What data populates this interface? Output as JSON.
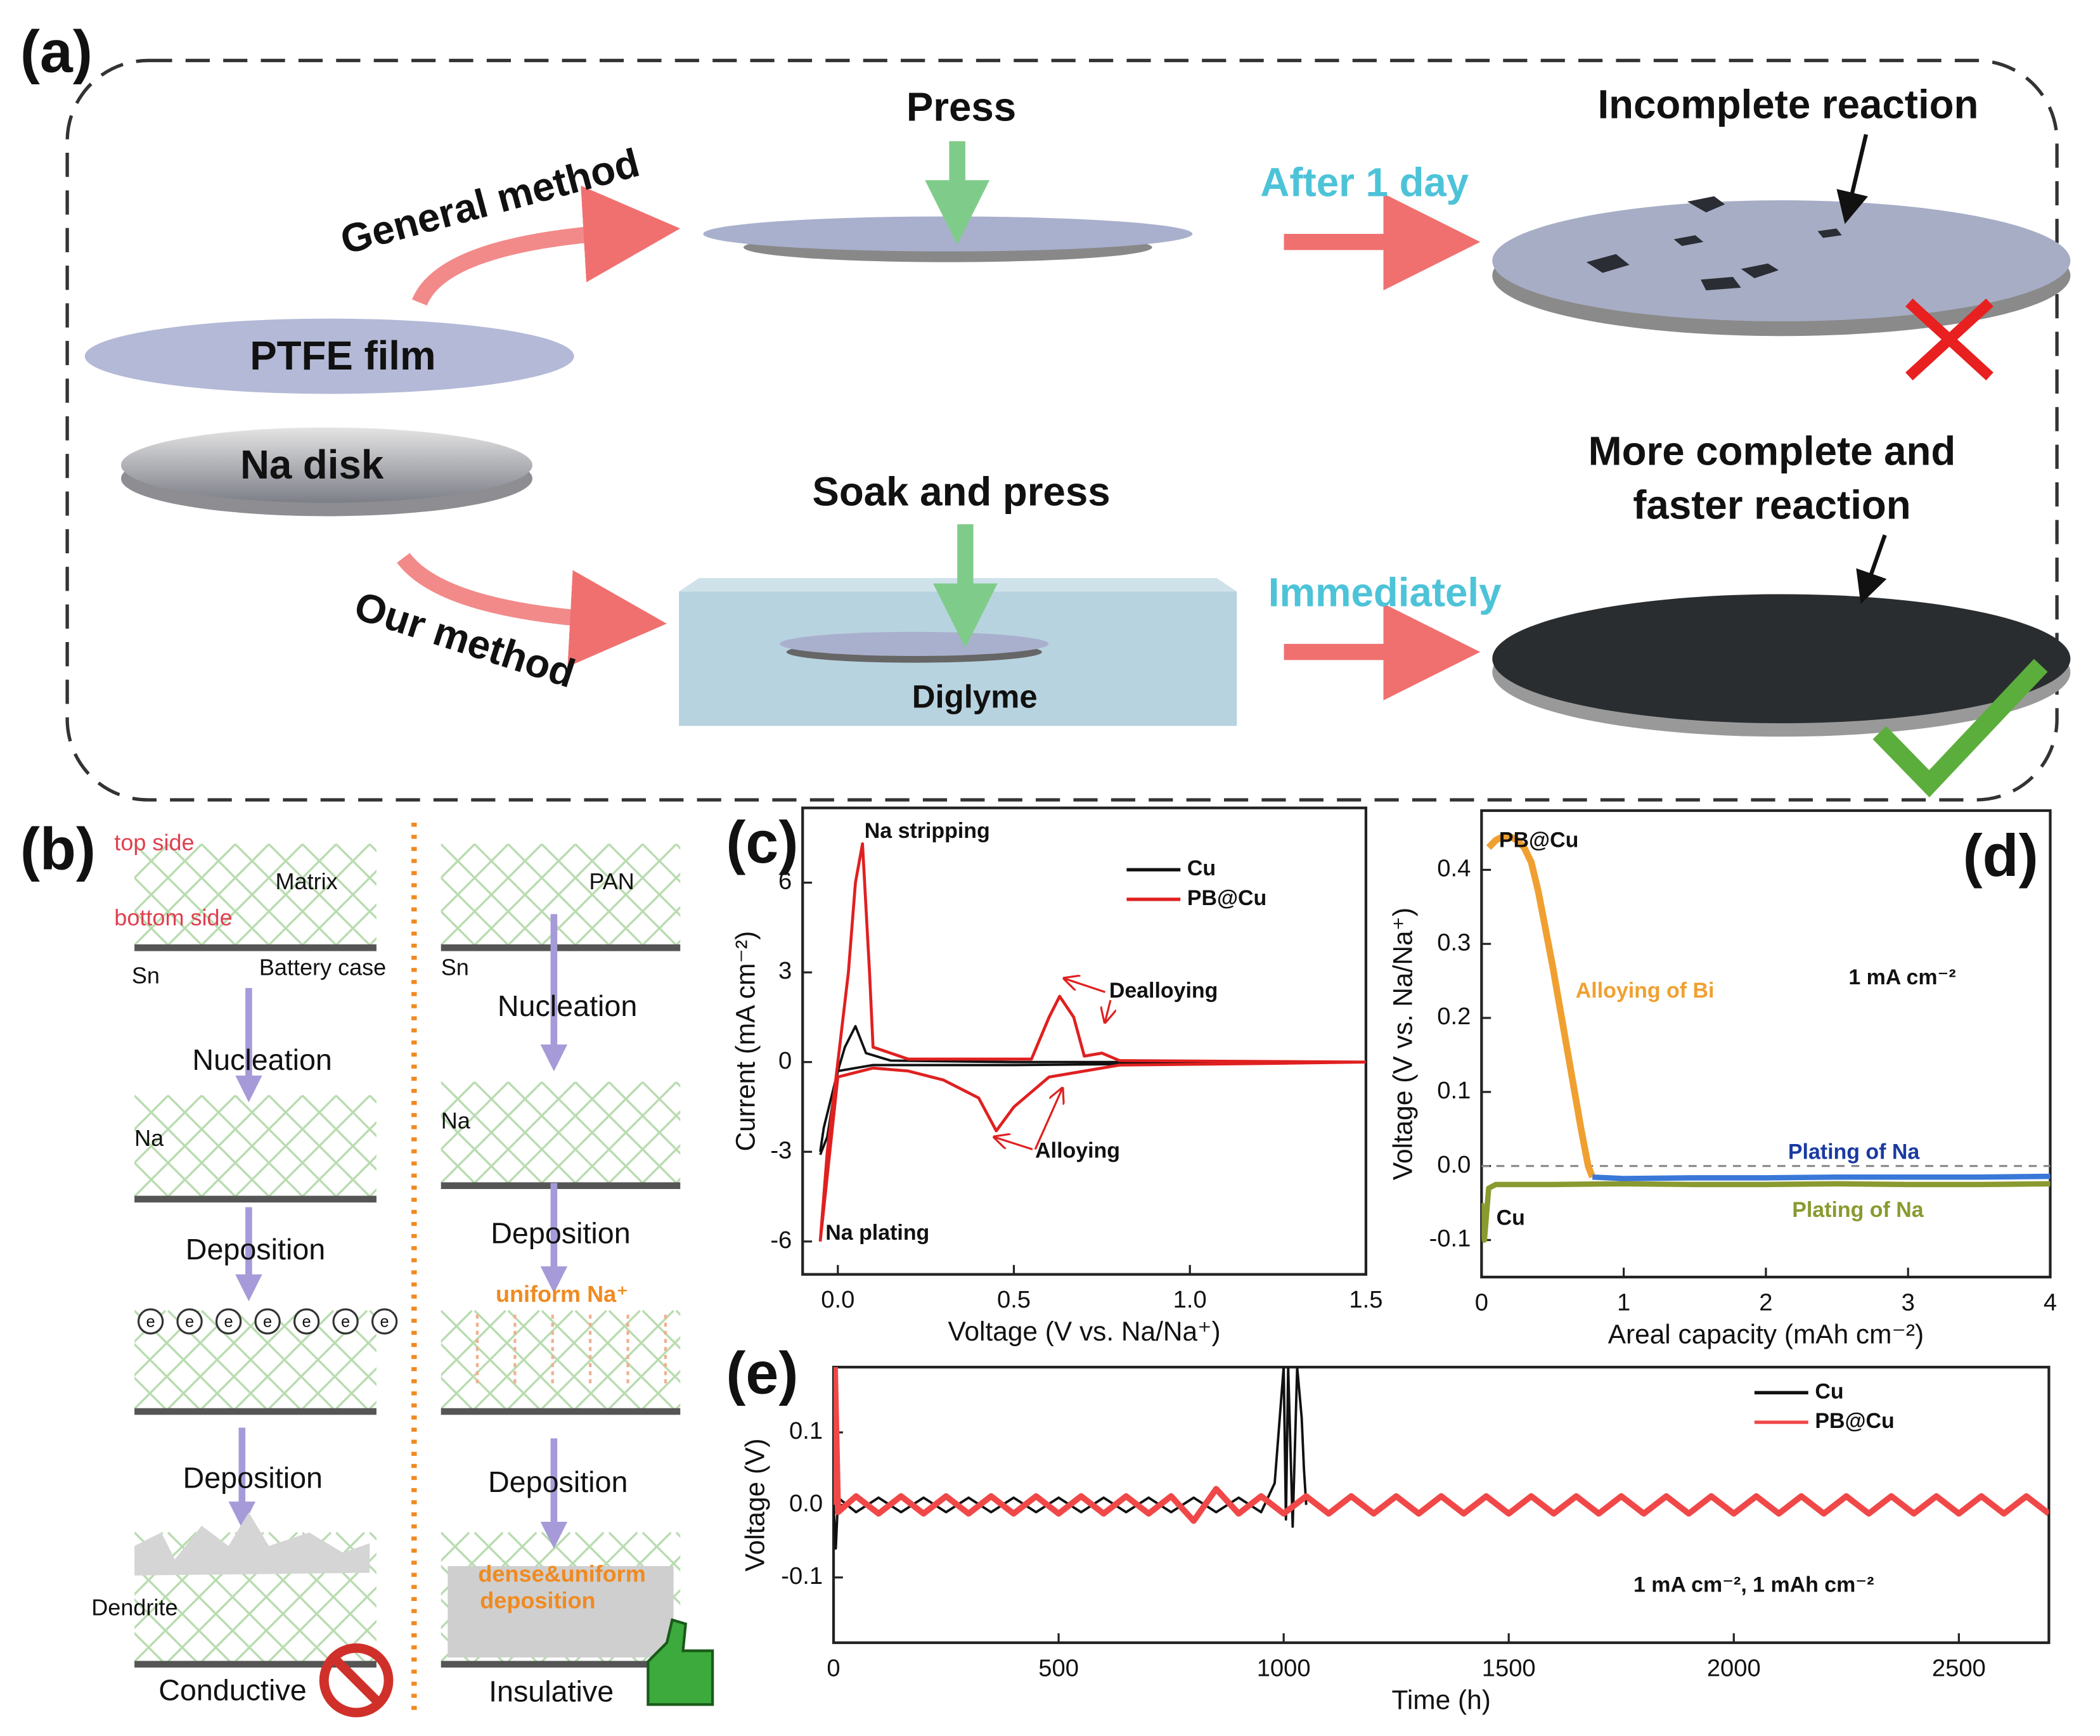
{
  "diagram_a": {
    "label": "(a)",
    "texts": [
      "Press",
      "Incomplete reaction",
      "General method",
      "After 1 day",
      "PTFE film",
      "Na disk",
      "Soak and press",
      "More complete and",
      "faster reaction",
      "Our method",
      "Immediately",
      "Diglyme"
    ]
  },
  "diagram_b": {
    "label": "(b)",
    "texts": [
      "top side",
      "Matrix",
      "bottom side",
      "Sn",
      "Battery case",
      "Nucleation",
      "Na",
      "Deposition",
      "Deposition",
      "Dendrite",
      "Conductive",
      "PAN",
      "Sn",
      "Nucleation",
      "Na",
      "Deposition",
      "uniform Na⁺",
      "Deposition",
      "dense&uniform",
      "deposition",
      "Insulative"
    ]
  },
  "chart_data": [
    {
      "type": "line",
      "label": "(c)",
      "xlabel": "Voltage (V vs. Na/Na⁺)",
      "ylabel": "Current (mA cm⁻²)",
      "xlim": [
        -0.1,
        1.5
      ],
      "ylim": [
        -7.1,
        8.5
      ],
      "xticks": [
        {
          "value": 0,
          "label": "0.0"
        },
        0.5,
        {
          "value": 1,
          "label": "1.0"
        },
        1.5
      ],
      "yticks": [
        -6,
        -3,
        0,
        3,
        6
      ],
      "legend": "upper right",
      "series": [
        {
          "name": "Cu",
          "color": "#111111",
          "x": [
            -0.05,
            -0.04,
            0,
            0.02,
            0.05,
            0.08,
            0.15,
            0.5,
            1.5,
            1.0,
            0.5,
            0.1,
            0,
            -0.03,
            -0.05
          ],
          "values": [
            -3,
            -2.2,
            -0.3,
            0.5,
            1.2,
            0.3,
            0.05,
            0,
            0,
            -0.05,
            -0.1,
            -0.1,
            -0.3,
            -2.5,
            -3.1
          ]
        },
        {
          "name": "PB@Cu",
          "color": "#e02020",
          "x": [
            -0.05,
            -0.03,
            0,
            0.03,
            0.05,
            0.07,
            0.09,
            0.1,
            0.2,
            0.55,
            0.6,
            0.63,
            0.67,
            0.7,
            0.75,
            0.77,
            0.8,
            1.5,
            1.2,
            0.8,
            0.6,
            0.5,
            0.45,
            0.4,
            0.3,
            0.2,
            0.1,
            0,
            -0.05
          ],
          "values": [
            -6,
            -3,
            0,
            3,
            6,
            7.3,
            3,
            0.5,
            0.1,
            0.1,
            1.5,
            2.2,
            1.5,
            0.2,
            0.3,
            0.2,
            0.05,
            0,
            -0.05,
            -0.1,
            -0.5,
            -1.5,
            -2.3,
            -1.2,
            -0.6,
            -0.3,
            -0.2,
            -0.5,
            -6
          ]
        }
      ],
      "annotations": [
        "Na stripping",
        "Dealloying",
        "Alloying",
        "Na plating"
      ]
    },
    {
      "type": "line",
      "label": "(d)",
      "xlabel": "Areal capacity (mAh cm⁻²)",
      "ylabel": "Voltage (V vs. Na/Na⁺)",
      "xlim": [
        0,
        4
      ],
      "ylim": [
        -0.15,
        0.48
      ],
      "xticks": [
        0,
        1,
        2,
        3,
        4
      ],
      "yticks": [
        -0.1,
        {
          "value": 0,
          "label": "0.0"
        },
        0.1,
        0.2,
        0.3,
        0.4
      ],
      "hline": 0,
      "series": [
        {
          "name": "PB@Cu",
          "color": "#f0a030",
          "x": [
            0.05,
            0.1,
            0.15,
            0.2,
            0.25,
            0.3,
            0.35,
            0.4,
            0.5,
            0.6,
            0.7,
            0.75,
            0.78
          ],
          "values": [
            0.43,
            0.44,
            0.445,
            0.445,
            0.44,
            0.43,
            0.41,
            0.37,
            0.27,
            0.16,
            0.05,
            0.0,
            -0.015
          ]
        },
        {
          "name": "Plating of Na",
          "color": "#3a78d8",
          "x": [
            0.78,
            1,
            1.5,
            2,
            2.5,
            3,
            3.5,
            4
          ],
          "values": [
            -0.015,
            -0.017,
            -0.016,
            -0.016,
            -0.015,
            -0.015,
            -0.015,
            -0.014
          ]
        },
        {
          "name": "Cu",
          "color": "#8a9a30",
          "x": [
            0,
            0.02,
            0.05,
            0.1,
            0.3,
            0.5,
            1,
            1.5,
            2,
            2.5,
            3,
            3.5,
            4
          ],
          "values": [
            -0.05,
            -0.1,
            -0.03,
            -0.025,
            -0.025,
            -0.025,
            -0.024,
            -0.025,
            -0.025,
            -0.024,
            -0.025,
            -0.025,
            -0.024
          ]
        }
      ],
      "annotations": [
        "Alloying of Bi",
        "Plating of Na",
        "1 mA cm⁻²"
      ]
    },
    {
      "type": "line",
      "label": "(e)",
      "xlabel": "Time (h)",
      "ylabel": "Voltage (V)",
      "xlim": [
        0,
        2700
      ],
      "ylim": [
        -0.19,
        0.19
      ],
      "xticks": [
        0,
        500,
        1000,
        1500,
        2000,
        2500
      ],
      "yticks": [
        -0.1,
        {
          "value": 0,
          "label": "0.0"
        },
        0.1
      ],
      "legend": "upper right",
      "series": [
        {
          "name": "Cu",
          "color": "#111111",
          "x": [
            0,
            5,
            10,
            50,
            100,
            150,
            200,
            250,
            300,
            350,
            400,
            450,
            500,
            550,
            600,
            650,
            700,
            750,
            800,
            850,
            900,
            950,
            980,
            1000,
            1005,
            1010,
            1020,
            1030,
            1040,
            1045,
            1050
          ],
          "values": [
            0,
            -0.06,
            0.01,
            -0.01,
            0.01,
            -0.01,
            0.01,
            -0.01,
            0.01,
            -0.01,
            0.01,
            -0.01,
            0.01,
            -0.01,
            0.01,
            -0.01,
            0.01,
            -0.01,
            0.01,
            -0.01,
            0.01,
            -0.01,
            0.03,
            0.19,
            -0.02,
            0.19,
            -0.03,
            0.19,
            0.12,
            0.05,
            0
          ]
        },
        {
          "name": "PB@Cu",
          "color": "#f04848",
          "x": [
            0,
            3,
            10,
            50,
            100,
            150,
            200,
            250,
            300,
            350,
            400,
            450,
            500,
            550,
            600,
            650,
            700,
            750,
            800,
            850,
            900,
            950,
            1000,
            1050,
            1100,
            1150,
            1200,
            1250,
            1300,
            1350,
            1400,
            1450,
            1500,
            1550,
            1600,
            1650,
            1700,
            1750,
            1800,
            1850,
            1900,
            1950,
            2000,
            2050,
            2100,
            2150,
            2200,
            2250,
            2300,
            2350,
            2400,
            2450,
            2500,
            2550,
            2600,
            2650,
            2700
          ],
          "values": [
            0,
            0.19,
            -0.01,
            0.012,
            -0.012,
            0.012,
            -0.012,
            0.012,
            -0.012,
            0.012,
            -0.012,
            0.012,
            -0.012,
            0.012,
            -0.012,
            0.012,
            -0.012,
            0.012,
            -0.022,
            0.022,
            -0.012,
            0.012,
            -0.012,
            0.012,
            -0.012,
            0.012,
            -0.012,
            0.012,
            -0.012,
            0.012,
            -0.012,
            0.012,
            -0.012,
            0.012,
            -0.012,
            0.012,
            -0.012,
            0.012,
            -0.012,
            0.012,
            -0.012,
            0.012,
            -0.012,
            0.012,
            -0.012,
            0.012,
            -0.012,
            0.012,
            -0.012,
            0.012,
            -0.012,
            0.012,
            -0.012,
            0.012,
            -0.012,
            0.012,
            -0.012
          ]
        }
      ],
      "annotations": [
        "1 mA cm⁻², 1 mAh cm⁻²"
      ]
    }
  ]
}
